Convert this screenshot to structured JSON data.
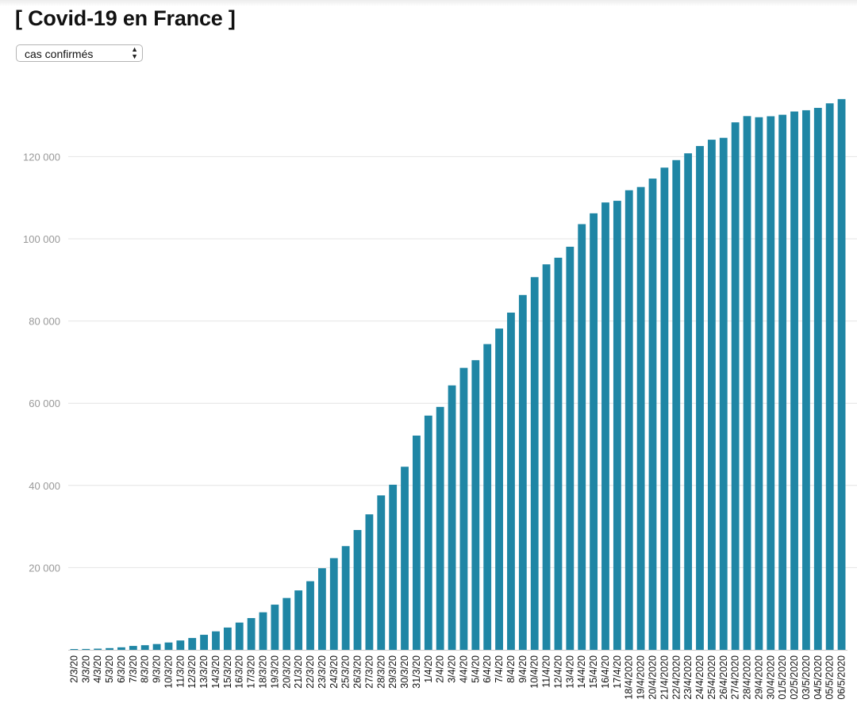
{
  "page": {
    "title": "[ Covid-19 en France ]",
    "selector": {
      "selected": "cas confirmés",
      "arrows_icon": "updown-arrows-icon"
    }
  },
  "colors": {
    "bar": "#1f86a5",
    "grid": "#e4e4e4",
    "tick_text": "#999999",
    "axis_label_text": "#111111"
  },
  "chart_data": {
    "type": "bar",
    "title": "",
    "xlabel": "",
    "ylabel": "",
    "ylim": [
      0,
      134000
    ],
    "yticks": [
      20000,
      40000,
      60000,
      80000,
      100000,
      120000
    ],
    "ytick_labels": [
      "20 000",
      "40 000",
      "60 000",
      "80 000",
      "100 000",
      "120 000"
    ],
    "grid": true,
    "categories": [
      "2/3/20",
      "3/3/20",
      "4/3/20",
      "5/3/20",
      "6/3/20",
      "7/3/20",
      "8/3/20",
      "9/3/20",
      "10/3/20",
      "11/3/20",
      "12/3/20",
      "13/3/20",
      "14/3/20",
      "15/3/20",
      "16/3/20",
      "17/3/20",
      "18/3/20",
      "19/3/20",
      "20/3/20",
      "21/3/20",
      "22/3/20",
      "23/3/20",
      "24/3/20",
      "25/3/20",
      "26/3/20",
      "27/3/20",
      "28/3/20",
      "29/3/20",
      "30/3/20",
      "31/3/20",
      "1/4/20",
      "2/4/20",
      "3/4/20",
      "4/4/20",
      "5/4/20",
      "6/4/20",
      "7/4/20",
      "8/4/20",
      "9/4/20",
      "10/4/20",
      "11/4/20",
      "12/4/20",
      "13/4/20",
      "14/4/20",
      "15/4/20",
      "16/4/20",
      "17/4/20",
      "18/4/2020",
      "19/4/2020",
      "20/4/2020",
      "21/4/2020",
      "22/4/2020",
      "23/4/2020",
      "24/4/2020",
      "25/4/2020",
      "26/4/2020",
      "27/4/2020",
      "28/4/2020",
      "29/4/2020",
      "30/4/2020",
      "01/5/2020",
      "02/5/2020",
      "03/5/2020",
      "04/5/2020",
      "05/5/2020",
      "06/5/2020"
    ],
    "values": [
      191,
      212,
      285,
      423,
      613,
      949,
      1126,
      1412,
      1784,
      2281,
      2876,
      3661,
      4499,
      5423,
      6633,
      7730,
      9134,
      10995,
      12612,
      14459,
      16689,
      19856,
      22304,
      25233,
      29155,
      32964,
      37575,
      40174,
      44550,
      52128,
      56989,
      59105,
      64338,
      68605,
      70478,
      74390,
      78167,
      82048,
      86334,
      90676,
      93790,
      95403,
      98076,
      103573,
      106206,
      108847,
      109252,
      111821,
      112606,
      114657,
      117324,
      119151,
      120804,
      122577,
      124114,
      124575,
      128339,
      129859,
      129581,
      129822,
      130185,
      130979,
      131287,
      131863,
      132967,
      134000
    ]
  }
}
